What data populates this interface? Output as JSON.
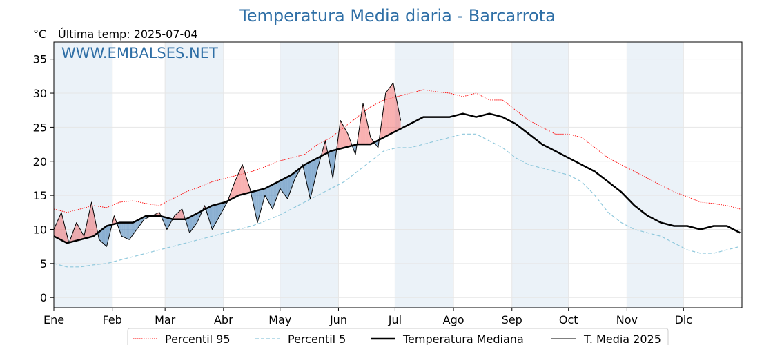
{
  "chart_data": {
    "type": "line",
    "title": "Temperatura Media diaria - Barcarrota",
    "unit_label": "°C",
    "subtitle": "Última temp: 2025-07-04",
    "watermark": "WWW.EMBALSES.NET",
    "ylim": [
      -1.5,
      37.5
    ],
    "yticks": [
      0,
      5,
      10,
      15,
      20,
      25,
      30,
      35
    ],
    "xlim": [
      0,
      365
    ],
    "month_starts": [
      0,
      31,
      59,
      90,
      120,
      151,
      181,
      212,
      243,
      273,
      304,
      334
    ],
    "month_labels": [
      "Ene",
      "Feb",
      "Mar",
      "Abr",
      "May",
      "Jun",
      "Jul",
      "Ago",
      "Sep",
      "Oct",
      "Nov",
      "Dic"
    ],
    "grid": true,
    "legend_position": "bottom-center",
    "colors": {
      "p95": "#ff0000",
      "p5": "#8fc8dc",
      "median": "#000000",
      "current": "#000000",
      "above_fill": "#ee3333",
      "below_fill": "#3a78b0",
      "band": "#dbe7f3"
    },
    "series": [
      {
        "name": "Percentil 95",
        "style": "dotted",
        "x": [
          0,
          7,
          14,
          21,
          28,
          35,
          42,
          49,
          56,
          63,
          70,
          77,
          84,
          91,
          98,
          105,
          112,
          119,
          126,
          133,
          140,
          147,
          154,
          161,
          168,
          175,
          182,
          189,
          196,
          203,
          210,
          217,
          224,
          231,
          238,
          245,
          252,
          259,
          266,
          273,
          280,
          287,
          294,
          301,
          308,
          315,
          322,
          329,
          336,
          343,
          350,
          357,
          364
        ],
        "y": [
          13.0,
          12.5,
          13.0,
          13.5,
          13.2,
          14.0,
          14.2,
          13.8,
          13.5,
          14.5,
          15.5,
          16.2,
          17.0,
          17.5,
          18.0,
          18.5,
          19.2,
          20.0,
          20.5,
          21.0,
          22.5,
          23.5,
          25.0,
          26.5,
          28.0,
          29.0,
          29.5,
          30.0,
          30.5,
          30.2,
          30.0,
          29.5,
          30.0,
          29.0,
          29.0,
          27.5,
          26.0,
          25.0,
          24.0,
          24.0,
          23.5,
          22.0,
          20.5,
          19.5,
          18.5,
          17.5,
          16.5,
          15.5,
          14.8,
          14.0,
          13.8,
          13.5,
          13.0
        ]
      },
      {
        "name": "Percentil 5",
        "style": "dashed",
        "x": [
          0,
          7,
          14,
          21,
          28,
          35,
          42,
          49,
          56,
          63,
          70,
          77,
          84,
          91,
          98,
          105,
          112,
          119,
          126,
          133,
          140,
          147,
          154,
          161,
          168,
          175,
          182,
          189,
          196,
          203,
          210,
          217,
          224,
          231,
          238,
          245,
          252,
          259,
          266,
          273,
          280,
          287,
          294,
          301,
          308,
          315,
          322,
          329,
          336,
          343,
          350,
          357,
          364
        ],
        "y": [
          5.0,
          4.5,
          4.5,
          4.8,
          5.0,
          5.5,
          6.0,
          6.5,
          7.0,
          7.5,
          8.0,
          8.5,
          9.0,
          9.5,
          10.0,
          10.5,
          11.2,
          12.0,
          13.0,
          14.0,
          15.0,
          16.0,
          17.0,
          18.5,
          20.0,
          21.5,
          22.0,
          22.0,
          22.5,
          23.0,
          23.5,
          24.0,
          24.0,
          23.0,
          22.0,
          20.5,
          19.5,
          19.0,
          18.5,
          18.0,
          17.0,
          15.0,
          12.5,
          11.0,
          10.0,
          9.5,
          9.0,
          8.0,
          7.0,
          6.5,
          6.5,
          7.0,
          7.5
        ]
      },
      {
        "name": "Temperatura Mediana",
        "style": "thick",
        "x": [
          0,
          7,
          14,
          21,
          28,
          35,
          42,
          49,
          56,
          63,
          70,
          77,
          84,
          91,
          98,
          105,
          112,
          119,
          126,
          133,
          140,
          147,
          154,
          161,
          168,
          175,
          182,
          189,
          196,
          203,
          210,
          217,
          224,
          231,
          238,
          245,
          252,
          259,
          266,
          273,
          280,
          287,
          294,
          301,
          308,
          315,
          322,
          329,
          336,
          343,
          350,
          357,
          364
        ],
        "y": [
          9.0,
          8.0,
          8.5,
          9.0,
          10.5,
          11.0,
          11.0,
          12.0,
          12.0,
          11.5,
          11.5,
          12.5,
          13.5,
          14.0,
          15.0,
          15.5,
          16.0,
          17.0,
          18.0,
          19.5,
          20.5,
          21.5,
          22.0,
          22.5,
          22.5,
          23.5,
          24.5,
          25.5,
          26.5,
          26.5,
          26.5,
          27.0,
          26.5,
          27.0,
          26.5,
          25.5,
          24.0,
          22.5,
          21.5,
          20.5,
          19.5,
          18.5,
          17.0,
          15.5,
          13.5,
          12.0,
          11.0,
          10.5,
          10.5,
          10.0,
          10.5,
          10.5,
          9.5
        ]
      },
      {
        "name": "T. Media 2025",
        "style": "thin",
        "x": [
          0,
          4,
          8,
          12,
          16,
          20,
          24,
          28,
          32,
          36,
          40,
          44,
          48,
          52,
          56,
          60,
          64,
          68,
          72,
          76,
          80,
          84,
          88,
          92,
          96,
          100,
          104,
          108,
          112,
          116,
          120,
          124,
          128,
          132,
          136,
          140,
          144,
          148,
          152,
          156,
          160,
          164,
          168,
          172,
          176,
          180,
          184
        ],
        "y": [
          10.0,
          12.5,
          8.0,
          11.0,
          9.0,
          14.0,
          8.5,
          7.5,
          12.0,
          9.0,
          8.5,
          10.0,
          11.5,
          12.0,
          12.5,
          10.0,
          12.0,
          13.0,
          9.5,
          11.0,
          13.5,
          10.0,
          12.0,
          14.0,
          17.0,
          19.5,
          16.0,
          11.0,
          15.0,
          13.0,
          16.0,
          14.5,
          17.5,
          19.5,
          14.5,
          19.0,
          23.0,
          17.5,
          26.0,
          24.0,
          21.0,
          28.5,
          23.5,
          22.0,
          30.0,
          31.5,
          26.0
        ]
      }
    ]
  },
  "legend": {
    "items": [
      {
        "label": "Percentil 95"
      },
      {
        "label": "Percentil 5"
      },
      {
        "label": "Temperatura Mediana"
      },
      {
        "label": "T. Media 2025"
      }
    ]
  }
}
